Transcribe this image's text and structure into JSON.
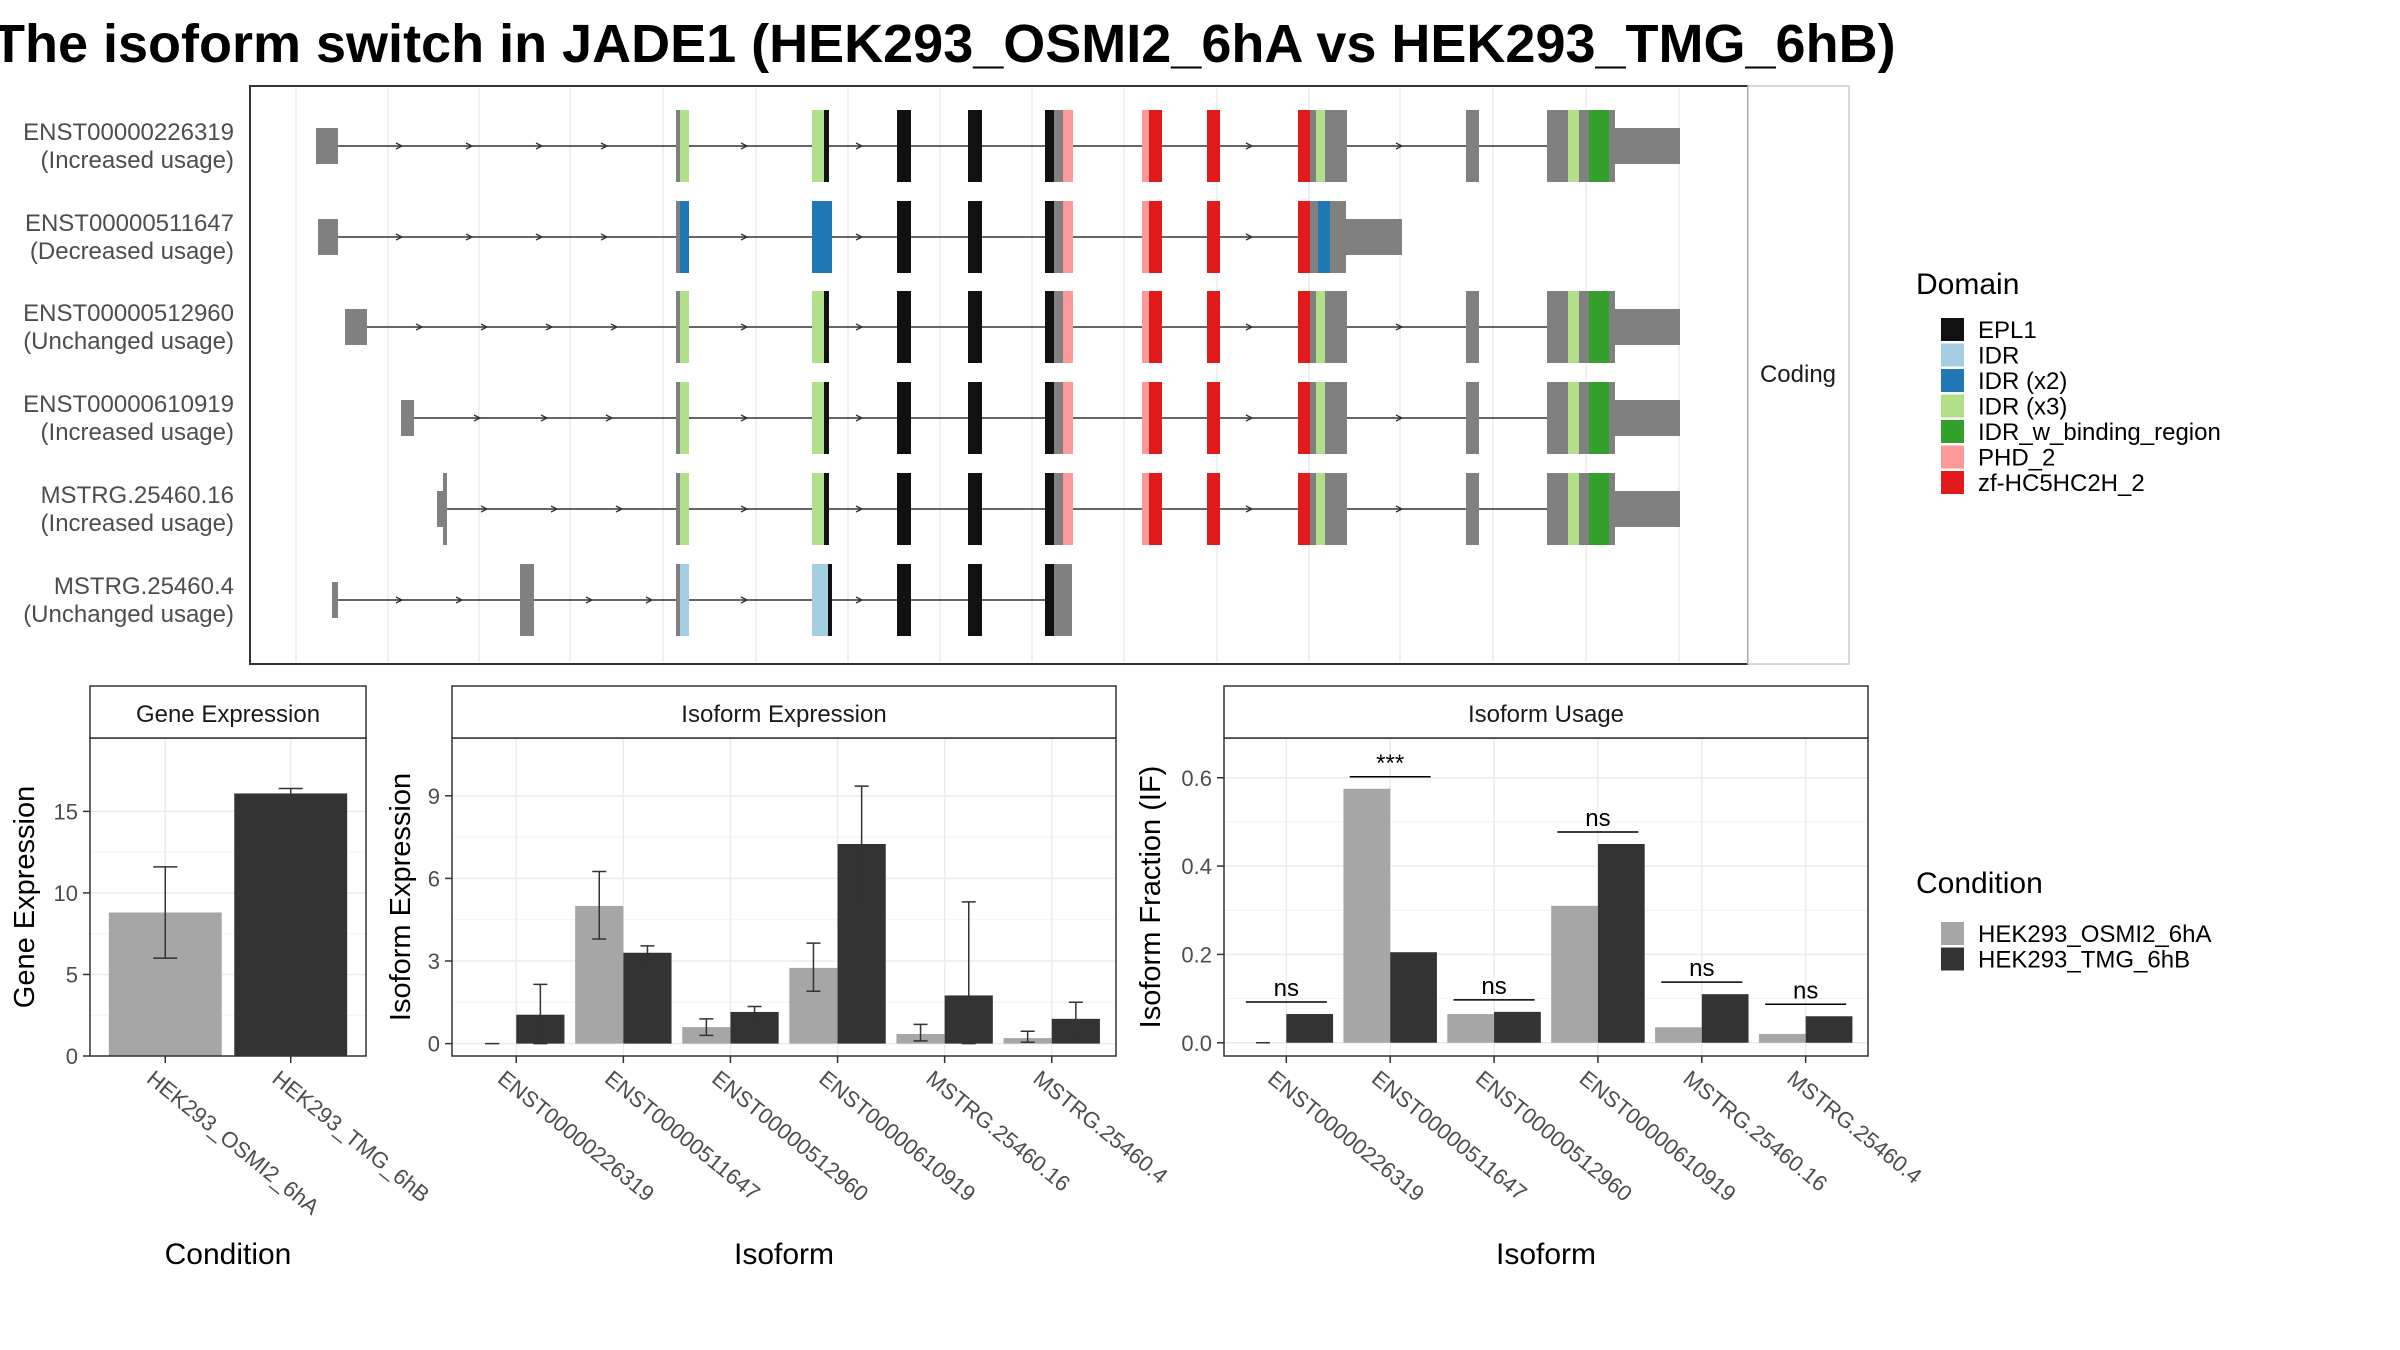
{
  "title": "The isoform switch in JADE1 (HEK293_OSMI2_6hA vs HEK293_TMG_6hB)",
  "colors": {
    "condition_a": "#a6a6a6",
    "condition_b": "#333333",
    "intron": "#333333",
    "non_coding_exon": "#808080",
    "panel_border": "#333333",
    "strip_fill": "#ffffff",
    "grid": "#ebebeb"
  },
  "structure_panel": {
    "strip_label": "Coding",
    "isoforms": [
      {
        "id": "ENST00000226319",
        "usage": "(Increased usage)"
      },
      {
        "id": "ENST00000511647",
        "usage": "(Decreased usage)"
      },
      {
        "id": "ENST00000512960",
        "usage": "(Unchanged usage)"
      },
      {
        "id": "ENST00000610919",
        "usage": "(Increased usage)"
      },
      {
        "id": "MSTRG.25460.16",
        "usage": "(Increased usage)"
      },
      {
        "id": "MSTRG.25460.4",
        "usage": "(Unchanged usage)"
      }
    ]
  },
  "domain_legend": {
    "title": "Domain",
    "items": [
      {
        "label": "EPL1",
        "color": "#111111"
      },
      {
        "label": "IDR",
        "color": "#a6cee3"
      },
      {
        "label": "IDR (x2)",
        "color": "#1f78b4"
      },
      {
        "label": "IDR (x3)",
        "color": "#b2df8a"
      },
      {
        "label": "IDR_w_binding_region",
        "color": "#33a02c"
      },
      {
        "label": "PHD_2",
        "color": "#fb9a99"
      },
      {
        "label": "zf-HC5HC2H_2",
        "color": "#e31a1c"
      }
    ]
  },
  "condition_legend": {
    "title": "Condition",
    "items": [
      {
        "label": "HEK293_OSMI2_6hA",
        "color": "#a6a6a6"
      },
      {
        "label": "HEK293_TMG_6hB",
        "color": "#333333"
      }
    ]
  },
  "chart_data": [
    {
      "type": "bar",
      "panel_title": "Gene Expression",
      "categories": [
        "HEK293_OSMI2_6hA",
        "HEK293_TMG_6hB"
      ],
      "values": [
        8.8,
        16.1
      ],
      "error": [
        [
          6.0,
          11.6
        ],
        [
          15.8,
          16.4
        ]
      ],
      "xlabel": "Condition",
      "ylabel": "Gene Expression",
      "ylim": [
        0,
        19.5
      ],
      "yticks": [
        0,
        5,
        10,
        15
      ],
      "grid": true
    },
    {
      "type": "bar",
      "panel_title": "Isoform Expression",
      "categories": [
        "ENST00000226319",
        "ENST00000511647",
        "ENST00000512960",
        "ENST00000610919",
        "MSTRG.25460.16",
        "MSTRG.25460.4"
      ],
      "series": [
        {
          "name": "HEK293_OSMI2_6hA",
          "values": [
            0.0,
            5.0,
            0.6,
            2.75,
            0.35,
            0.2
          ],
          "error": [
            [
              0.0,
              0.0
            ],
            [
              3.8,
              6.25
            ],
            [
              0.3,
              0.9
            ],
            [
              1.9,
              3.65
            ],
            [
              0.1,
              0.7
            ],
            [
              0.05,
              0.45
            ]
          ]
        },
        {
          "name": "HEK293_TMG_6hB",
          "values": [
            1.05,
            3.3,
            1.15,
            7.25,
            1.75,
            0.9
          ],
          "error": [
            [
              0.0,
              2.15
            ],
            [
              3.0,
              3.55
            ],
            [
              0.9,
              1.35
            ],
            [
              5.15,
              9.35
            ],
            [
              0.0,
              5.15
            ],
            [
              0.35,
              1.5
            ]
          ]
        }
      ],
      "xlabel": "Isoform",
      "ylabel": "Isoform Expression",
      "ylim": [
        -0.45,
        11.1
      ],
      "yticks": [
        0,
        3,
        6,
        9
      ],
      "grid": true
    },
    {
      "type": "bar",
      "panel_title": "Isoform Usage",
      "categories": [
        "ENST00000226319",
        "ENST00000511647",
        "ENST00000512960",
        "ENST00000610919",
        "MSTRG.25460.16",
        "MSTRG.25460.4"
      ],
      "series": [
        {
          "name": "HEK293_OSMI2_6hA",
          "values": [
            0.0,
            0.575,
            0.065,
            0.31,
            0.035,
            0.02
          ]
        },
        {
          "name": "HEK293_TMG_6hB",
          "values": [
            0.065,
            0.205,
            0.07,
            0.45,
            0.11,
            0.06
          ]
        }
      ],
      "significance": [
        "ns",
        "***",
        "ns",
        "ns",
        "ns",
        "ns"
      ],
      "xlabel": "Isoform",
      "ylabel": "Isoform Fraction (IF)",
      "ylim": [
        -0.03,
        0.69
      ],
      "yticks": [
        0.0,
        0.2,
        0.4,
        0.6
      ],
      "ytick_labels": [
        "0.0",
        "0.2",
        "0.4",
        "0.6"
      ],
      "grid": true
    }
  ]
}
